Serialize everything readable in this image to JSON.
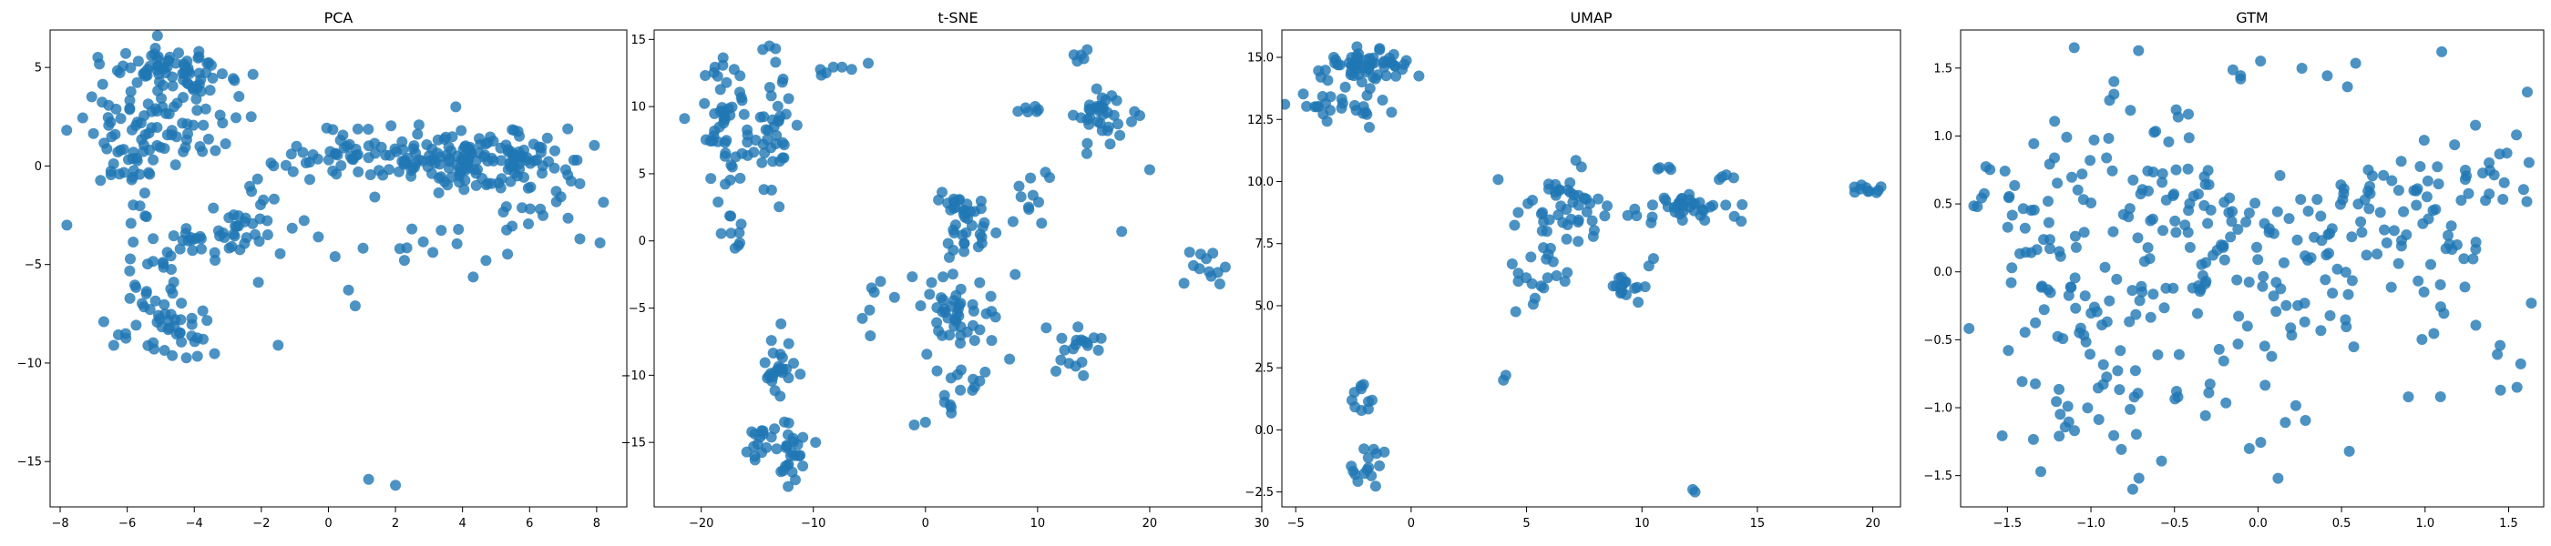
{
  "figure": {
    "colors": {
      "marker": "#1f77b4",
      "axis": "#000000",
      "background": "#ffffff"
    }
  },
  "chart_data": [
    {
      "type": "scatter",
      "title": "PCA",
      "xlabel": "",
      "ylabel": "",
      "xlim": [
        -8.3,
        8.9
      ],
      "ylim": [
        -17.3,
        6.9
      ],
      "xticks": [
        -8,
        -6,
        -4,
        -2,
        0,
        2,
        4,
        6,
        8
      ],
      "yticks": [
        -15,
        -10,
        -5,
        0,
        5
      ],
      "grid": false,
      "legend": "none",
      "clusters": [
        {
          "cx": -4.6,
          "cy": 4.8,
          "sx": 0.9,
          "sy": 0.6,
          "n": 70
        },
        {
          "cx": -5.8,
          "cy": 2.8,
          "sx": 0.9,
          "sy": 0.9,
          "n": 40
        },
        {
          "cx": -6.0,
          "cy": 0.3,
          "sx": 0.7,
          "sy": 0.9,
          "n": 30
        },
        {
          "cx": -3.8,
          "cy": 2.0,
          "sx": 1.1,
          "sy": 1.0,
          "n": 30
        },
        {
          "cx": -3.5,
          "cy": -3.6,
          "sx": 1.0,
          "sy": 0.7,
          "n": 40
        },
        {
          "cx": -5.2,
          "cy": -5.2,
          "sx": 0.6,
          "sy": 0.7,
          "n": 15
        },
        {
          "cx": -4.8,
          "cy": -8.2,
          "sx": 0.7,
          "sy": 0.9,
          "n": 45
        },
        {
          "cx": -2.2,
          "cy": -2.5,
          "sx": 0.8,
          "sy": 0.8,
          "n": 15
        },
        {
          "cx": 1.5,
          "cy": 0.5,
          "sx": 1.5,
          "sy": 0.7,
          "n": 90
        },
        {
          "cx": 4.2,
          "cy": 0.2,
          "sx": 0.9,
          "sy": 0.7,
          "n": 55
        },
        {
          "cx": 5.8,
          "cy": 0.5,
          "sx": 0.9,
          "sy": 0.7,
          "n": 55
        },
        {
          "cx": 6.2,
          "cy": -2.0,
          "sx": 1.0,
          "sy": 0.9,
          "n": 15
        },
        {
          "cx": 2.8,
          "cy": -3.5,
          "sx": 1.5,
          "sy": 1.3,
          "n": 15
        }
      ],
      "points": [
        {
          "x": 1.2,
          "y": -15.9
        },
        {
          "x": 2.0,
          "y": -16.2
        },
        {
          "x": -1.5,
          "y": -9.1
        },
        {
          "x": 0.8,
          "y": -7.1
        },
        {
          "x": 0.6,
          "y": -6.3
        },
        {
          "x": -7.8,
          "y": -3.0
        },
        {
          "x": -6.7,
          "y": -7.9
        },
        {
          "x": 8.1,
          "y": -3.9
        },
        {
          "x": 7.5,
          "y": -3.7
        },
        {
          "x": 7.5,
          "y": -0.9
        },
        {
          "x": 0.2,
          "y": -4.6
        },
        {
          "x": -0.3,
          "y": -3.6
        },
        {
          "x": 3.8,
          "y": 3.0
        },
        {
          "x": 4.7,
          "y": -4.8
        }
      ]
    },
    {
      "type": "scatter",
      "title": "t-SNE",
      "xlabel": "",
      "ylabel": "",
      "xlim": [
        -24.2,
        30.0
      ],
      "ylim": [
        -19.8,
        15.7
      ],
      "xticks": [
        -20,
        -10,
        0,
        10,
        20,
        30
      ],
      "yticks": [
        -20,
        -15,
        -10,
        -5,
        0,
        5,
        10,
        15
      ],
      "grid": false,
      "legend": "none",
      "clusters": [
        {
          "cx": -17.5,
          "cy": 9.0,
          "sx": 1.5,
          "sy": 2.2,
          "n": 50
        },
        {
          "cx": -13.5,
          "cy": 9.0,
          "sx": 1.3,
          "sy": 2.8,
          "n": 40
        },
        {
          "cx": -16.8,
          "cy": 1.5,
          "sx": 0.6,
          "sy": 1.0,
          "n": 10
        },
        {
          "cx": -13.0,
          "cy": -9.2,
          "sx": 0.8,
          "sy": 1.3,
          "n": 25
        },
        {
          "cx": -14.5,
          "cy": -15.0,
          "sx": 0.8,
          "sy": 0.5,
          "n": 15
        },
        {
          "cx": -12.0,
          "cy": -16.2,
          "sx": 0.7,
          "sy": 1.3,
          "n": 25
        },
        {
          "cx": 3.5,
          "cy": 1.5,
          "sx": 1.3,
          "sy": 1.6,
          "n": 40
        },
        {
          "cx": 3.0,
          "cy": -5.5,
          "sx": 1.8,
          "sy": 1.8,
          "n": 45
        },
        {
          "cx": 3.5,
          "cy": -11.5,
          "sx": 1.2,
          "sy": 1.2,
          "n": 15
        },
        {
          "cx": 15.5,
          "cy": 9.2,
          "sx": 1.3,
          "sy": 1.4,
          "n": 35
        },
        {
          "cx": 14.0,
          "cy": 13.8,
          "sx": 0.4,
          "sy": 0.3,
          "n": 5
        },
        {
          "cx": 13.5,
          "cy": -8.0,
          "sx": 1.2,
          "sy": 1.3,
          "n": 20
        },
        {
          "cx": 10.0,
          "cy": 3.5,
          "sx": 1.5,
          "sy": 1.0,
          "n": 10
        },
        {
          "cx": 25.0,
          "cy": -2.0,
          "sx": 1.3,
          "sy": 0.8,
          "n": 12
        },
        {
          "cx": -7.5,
          "cy": 12.8,
          "sx": 1.0,
          "sy": 0.3,
          "n": 6
        },
        {
          "cx": 9.5,
          "cy": 9.8,
          "sx": 0.6,
          "sy": 0.2,
          "n": 6
        },
        {
          "cx": -4.0,
          "cy": -4.5,
          "sx": 1.5,
          "sy": 1.0,
          "n": 6
        }
      ],
      "points": [
        {
          "x": 0.0,
          "y": -13.5
        },
        {
          "x": -1.0,
          "y": -13.7
        },
        {
          "x": 8.0,
          "y": -2.5
        },
        {
          "x": 7.5,
          "y": -8.8
        },
        {
          "x": 17.5,
          "y": 0.7
        },
        {
          "x": 20.0,
          "y": 5.3
        },
        {
          "x": -9.8,
          "y": -15.0
        },
        {
          "x": -4.8,
          "y": -3.5
        }
      ]
    },
    {
      "type": "scatter",
      "title": "UMAP",
      "xlabel": "",
      "ylabel": "",
      "xlim": [
        -5.6,
        21.2
      ],
      "ylim": [
        -3.1,
        16.1
      ],
      "xticks": [
        -5,
        0,
        5,
        10,
        15,
        20
      ],
      "yticks": [
        -2.5,
        0.0,
        2.5,
        5.0,
        7.5,
        10.0,
        12.5,
        15.0
      ],
      "grid": false,
      "legend": "none",
      "clusters": [
        {
          "cx": -2.0,
          "cy": 14.6,
          "sx": 0.9,
          "sy": 0.4,
          "n": 60
        },
        {
          "cx": -3.8,
          "cy": 13.0,
          "sx": 0.9,
          "sy": 0.3,
          "n": 15
        },
        {
          "cx": -2.2,
          "cy": 13.0,
          "sx": 0.5,
          "sy": 0.4,
          "n": 10
        },
        {
          "cx": -2.0,
          "cy": 1.2,
          "sx": 0.3,
          "sy": 0.4,
          "n": 10
        },
        {
          "cx": -1.8,
          "cy": -1.6,
          "sx": 0.6,
          "sy": 0.4,
          "n": 15
        },
        {
          "cx": 6.5,
          "cy": 9.0,
          "sx": 0.8,
          "sy": 0.8,
          "n": 45
        },
        {
          "cx": 5.5,
          "cy": 6.5,
          "sx": 0.5,
          "sy": 1.0,
          "n": 20
        },
        {
          "cx": 9.5,
          "cy": 5.6,
          "sx": 0.6,
          "sy": 0.3,
          "n": 15
        },
        {
          "cx": 9.6,
          "cy": 8.8,
          "sx": 0.6,
          "sy": 0.3,
          "n": 8
        },
        {
          "cx": 12.3,
          "cy": 9.0,
          "sx": 0.7,
          "sy": 0.3,
          "n": 30
        },
        {
          "cx": 19.8,
          "cy": 9.7,
          "sx": 0.5,
          "sy": 0.1,
          "n": 10
        },
        {
          "cx": 11.0,
          "cy": 10.5,
          "sx": 0.3,
          "sy": 0.1,
          "n": 4
        },
        {
          "cx": 13.5,
          "cy": 10.2,
          "sx": 0.3,
          "sy": 0.1,
          "n": 4
        }
      ],
      "points": [
        {
          "x": 4.0,
          "y": 2.0
        },
        {
          "x": 4.1,
          "y": 2.2
        },
        {
          "x": 12.2,
          "y": -2.4
        },
        {
          "x": 12.3,
          "y": -2.5
        },
        {
          "x": 10.3,
          "y": 6.6
        },
        {
          "x": 10.5,
          "y": 6.9
        },
        {
          "x": 14.0,
          "y": 8.6
        },
        {
          "x": 14.3,
          "y": 8.4
        }
      ]
    },
    {
      "type": "scatter",
      "title": "GTM",
      "xlabel": "",
      "ylabel": "",
      "xlim": [
        -1.78,
        1.71
      ],
      "ylim": [
        -1.73,
        1.78
      ],
      "xticks": [
        -1.5,
        -1.0,
        -0.5,
        0.0,
        0.5,
        1.0,
        1.5
      ],
      "yticks": [
        -1.5,
        -1.0,
        -0.5,
        0.0,
        0.5,
        1.0,
        1.5
      ],
      "grid": false,
      "legend": "none",
      "clusters": [
        {
          "cx": -0.7,
          "cy": 0.8,
          "sx": 0.3,
          "sy": 0.4,
          "n": 70
        },
        {
          "cx": -1.45,
          "cy": 0.6,
          "sx": 0.15,
          "sy": 0.15,
          "n": 15
        },
        {
          "cx": -1.3,
          "cy": 0.1,
          "sx": 0.15,
          "sy": 0.2,
          "n": 15
        },
        {
          "cx": -1.0,
          "cy": -0.3,
          "sx": 0.25,
          "sy": 0.2,
          "n": 30
        },
        {
          "cx": -0.9,
          "cy": -1.0,
          "sx": 0.3,
          "sy": 0.25,
          "n": 35
        },
        {
          "cx": -0.3,
          "cy": -0.1,
          "sx": 0.3,
          "sy": 0.3,
          "n": 35
        },
        {
          "cx": 0.1,
          "cy": 0.35,
          "sx": 0.25,
          "sy": 0.15,
          "n": 35
        },
        {
          "cx": 0.7,
          "cy": 0.3,
          "sx": 0.2,
          "sy": 0.2,
          "n": 40
        },
        {
          "cx": 0.7,
          "cy": 0.7,
          "sx": 0.3,
          "sy": 0.1,
          "n": 15
        },
        {
          "cx": 0.45,
          "cy": -0.35,
          "sx": 0.25,
          "sy": 0.2,
          "n": 20
        },
        {
          "cx": 1.4,
          "cy": 0.75,
          "sx": 0.2,
          "sy": 0.25,
          "n": 25
        },
        {
          "cx": 1.4,
          "cy": -0.6,
          "sx": 0.2,
          "sy": 0.2,
          "n": 10
        },
        {
          "cx": 0.25,
          "cy": 1.45,
          "sx": 0.3,
          "sy": 0.1,
          "n": 8
        },
        {
          "cx": 0.0,
          "cy": -1.0,
          "sx": 0.35,
          "sy": 0.2,
          "n": 10
        },
        {
          "cx": 1.2,
          "cy": 0.15,
          "sx": 0.15,
          "sy": 0.15,
          "n": 10
        }
      ],
      "points": [
        {
          "x": -1.3,
          "y": -1.47
        },
        {
          "x": 0.12,
          "y": -1.52
        },
        {
          "x": -0.75,
          "y": -1.6
        },
        {
          "x": 1.1,
          "y": 1.62
        },
        {
          "x": -1.1,
          "y": 1.65
        },
        {
          "x": 1.55,
          "y": -0.85
        },
        {
          "x": 0.9,
          "y": -0.92
        },
        {
          "x": -1.68,
          "y": 0.48
        }
      ]
    }
  ]
}
